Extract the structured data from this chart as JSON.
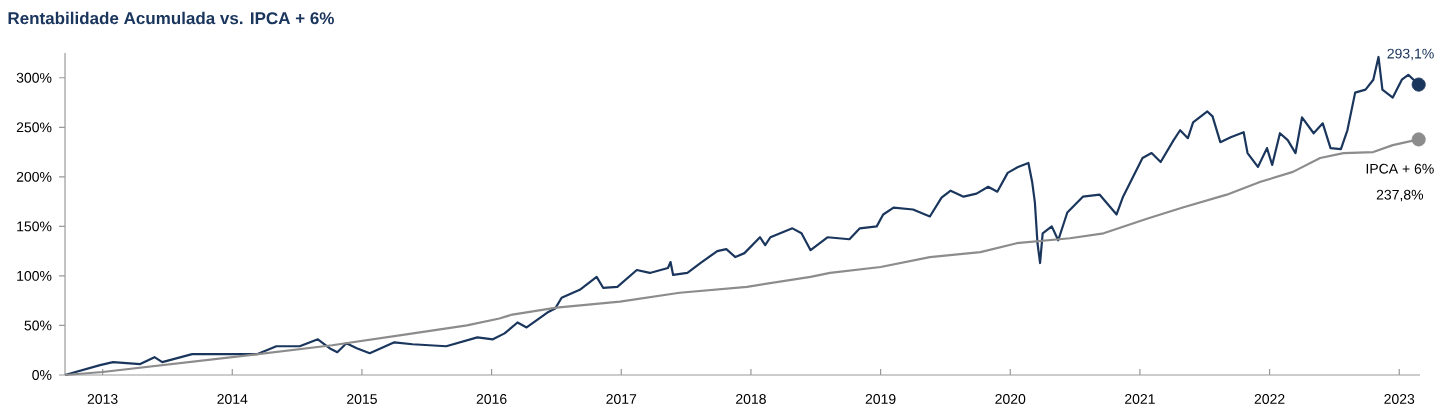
{
  "chart_data": {
    "type": "line",
    "title": "Rentabilidade Acumulada vs. IPCA + 6%",
    "xlim": [
      2012.71,
      2023.16
    ],
    "xticks": [
      2013,
      2014,
      2015,
      2016,
      2017,
      2018,
      2019,
      2020,
      2021,
      2022,
      2023
    ],
    "ylim": [
      0,
      325
    ],
    "yticks": [
      {
        "value": 0,
        "label": "0%"
      },
      {
        "value": 50,
        "label": "50%"
      },
      {
        "value": 100,
        "label": "100%"
      },
      {
        "value": 150,
        "label": "150%"
      },
      {
        "value": 200,
        "label": "200%"
      },
      {
        "value": 250,
        "label": "250%"
      },
      {
        "value": 300,
        "label": "300%"
      }
    ],
    "series": [
      {
        "color": "#1b365d",
        "x": [
          2012.71,
          2012.98,
          2013.08,
          2013.29,
          2013.4,
          2013.46,
          2013.69,
          2014.0,
          2014.19,
          2014.34,
          2014.52,
          2014.66,
          2014.75,
          2014.81,
          2014.88,
          2014.96,
          2015.06,
          2015.25,
          2015.39,
          2015.65,
          2015.89,
          2016.01,
          2016.1,
          2016.2,
          2016.27,
          2016.43,
          2016.49,
          2016.54,
          2016.68,
          2016.81,
          2016.86,
          2016.97,
          2017.12,
          2017.22,
          2017.36,
          2017.38,
          2017.4,
          2017.51,
          2017.61,
          2017.74,
          2017.81,
          2017.88,
          2017.95,
          2018.07,
          2018.11,
          2018.15,
          2018.32,
          2018.39,
          2018.46,
          2018.59,
          2018.76,
          2018.84,
          2018.97,
          2019.02,
          2019.1,
          2019.25,
          2019.38,
          2019.47,
          2019.54,
          2019.64,
          2019.74,
          2019.83,
          2019.9,
          2019.98,
          2020.06,
          2020.14,
          2020.17,
          2020.19,
          2020.21,
          2020.23,
          2020.25,
          2020.28,
          2020.32,
          2020.37,
          2020.44,
          2020.56,
          2020.69,
          2020.82,
          2020.87,
          2021.02,
          2021.09,
          2021.16,
          2021.26,
          2021.31,
          2021.37,
          2021.41,
          2021.52,
          2021.56,
          2021.62,
          2021.7,
          2021.8,
          2021.83,
          2021.91,
          2021.98,
          2022.02,
          2022.08,
          2022.14,
          2022.2,
          2022.25,
          2022.34,
          2022.41,
          2022.47,
          2022.55,
          2022.6,
          2022.66,
          2022.74,
          2022.8,
          2022.84,
          2022.87,
          2022.95,
          2023.02,
          2023.07,
          2023.15
        ],
        "values": [
          0,
          10,
          13,
          11,
          18,
          13,
          21,
          21,
          21,
          29,
          29,
          36,
          27,
          23,
          32,
          27,
          22,
          33,
          31,
          29,
          38,
          36,
          42,
          53,
          48,
          63,
          67,
          78,
          86,
          99,
          88,
          89,
          106,
          103,
          108,
          114,
          101,
          103,
          113,
          125,
          127,
          119,
          123,
          139,
          131,
          139,
          148,
          143,
          126,
          139,
          137,
          148,
          150,
          162,
          169,
          167,
          160,
          179,
          186,
          180,
          183,
          190,
          185,
          204,
          210,
          214,
          194,
          174,
          133,
          113,
          143,
          146,
          150,
          136,
          164,
          180,
          182,
          162,
          180,
          219,
          224,
          215,
          237,
          247,
          239,
          255,
          266,
          261,
          235,
          240,
          245,
          224,
          210,
          229,
          212,
          244,
          237,
          224,
          260,
          244,
          254,
          229,
          228,
          247,
          285,
          288,
          298,
          321,
          288,
          280,
          298,
          303,
          293.1
        ],
        "value_labels": [
          null,
          null,
          null,
          null,
          null,
          null,
          null,
          null,
          null,
          null,
          null,
          null,
          null,
          null,
          null,
          null,
          null,
          null,
          null,
          null,
          null,
          null,
          null,
          null,
          null,
          null,
          null,
          null,
          null,
          null,
          null,
          null,
          null,
          null,
          null,
          null,
          null,
          null,
          null,
          null,
          null,
          null,
          null,
          null,
          null,
          null,
          null,
          null,
          null,
          null,
          null,
          null,
          null,
          null,
          null,
          null,
          null,
          null,
          null,
          null,
          null,
          null,
          null,
          null,
          null,
          null,
          null,
          null,
          null,
          null,
          null,
          null,
          null,
          null,
          null,
          null,
          null,
          null,
          null,
          null,
          null,
          null,
          null,
          null,
          null,
          null,
          null,
          null,
          null,
          null,
          null,
          null,
          null,
          null,
          null,
          null,
          null,
          null,
          null,
          null,
          null,
          null,
          null,
          null,
          null,
          null,
          null,
          null,
          null,
          null,
          null,
          null,
          "293,1%"
        ]
      },
      {
        "name": "IPCA + 6%",
        "color": "#8c8c8c",
        "x": [
          2012.71,
          2013.0,
          2014.0,
          2014.77,
          2015.29,
          2015.81,
          2016.06,
          2016.16,
          2016.5,
          2016.99,
          2017.45,
          2017.97,
          2018.46,
          2018.61,
          2019.0,
          2019.38,
          2019.77,
          2020.05,
          2020.46,
          2020.72,
          2021.06,
          2021.33,
          2021.67,
          2021.93,
          2022.18,
          2022.39,
          2022.57,
          2022.8,
          2022.95,
          2023.15
        ],
        "values": [
          0,
          3,
          18,
          30,
          40,
          50,
          57,
          61,
          68,
          74,
          83,
          89,
          99,
          103,
          109,
          119,
          124,
          133,
          138,
          143,
          158,
          169,
          182,
          195,
          205,
          219,
          224,
          225,
          232,
          237.8
        ],
        "value_labels": [
          null,
          null,
          null,
          null,
          null,
          null,
          null,
          null,
          null,
          null,
          null,
          null,
          null,
          null,
          null,
          null,
          null,
          null,
          null,
          null,
          null,
          null,
          null,
          null,
          null,
          null,
          null,
          null,
          null,
          "237,8%"
        ]
      }
    ]
  }
}
